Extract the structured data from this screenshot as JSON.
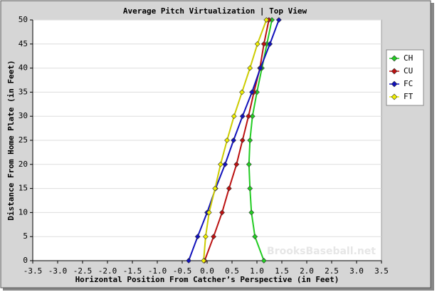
{
  "chart_data": {
    "type": "line",
    "title": "Average Pitch Virtualization | Top View",
    "xlabel": "Horizontal Position From Catcher’s Perspective (in Feet)",
    "ylabel": "Distance From Home Plate (in Feet)",
    "watermark": "BrooksBaseball.net",
    "xlim": [
      -3.5,
      3.5
    ],
    "ylim": [
      0,
      50
    ],
    "xticks": [
      -3.5,
      {
        "value": -3,
        "label": "-3.0"
      },
      -2.5,
      {
        "value": -2,
        "label": "-2.0"
      },
      -1.5,
      {
        "value": -1,
        "label": "-1.0"
      },
      -0.5,
      {
        "value": 0,
        "label": "0.0"
      },
      0.5,
      {
        "value": 1,
        "label": "1.0"
      },
      1.5,
      {
        "value": 2,
        "label": "2.0"
      },
      2.5,
      {
        "value": 3,
        "label": "3.0"
      },
      3.5
    ],
    "yticks": [
      0,
      5,
      10,
      15,
      20,
      25,
      30,
      35,
      40,
      45,
      50
    ],
    "grid": true,
    "legend": "right",
    "series": [
      {
        "name": "CH",
        "color": "#22cc22",
        "x": [
          1.14,
          0.96,
          0.89,
          0.86,
          0.84,
          0.86,
          0.91,
          1.0,
          1.1,
          1.2,
          1.3
        ],
        "values": [
          0,
          5,
          10,
          15,
          20,
          25,
          30,
          35,
          40,
          45,
          50
        ]
      },
      {
        "name": "CU",
        "color": "#bb1111",
        "x": [
          -0.05,
          0.13,
          0.3,
          0.44,
          0.59,
          0.71,
          0.83,
          0.94,
          1.06,
          1.14,
          1.24
        ],
        "values": [
          0,
          5,
          10,
          15,
          20,
          25,
          30,
          35,
          40,
          45,
          50
        ]
      },
      {
        "name": "FC",
        "color": "#1111bb",
        "x": [
          -0.37,
          -0.19,
          0,
          0.17,
          0.36,
          0.53,
          0.71,
          0.9,
          1.07,
          1.26,
          1.44
        ],
        "values": [
          0,
          5,
          10,
          15,
          20,
          25,
          30,
          35,
          40,
          45,
          50
        ]
      },
      {
        "name": "FT",
        "color": "#eeee00",
        "x": [
          -0.07,
          -0.03,
          0.04,
          0.16,
          0.27,
          0.4,
          0.54,
          0.7,
          0.86,
          1.01,
          1.19
        ],
        "values": [
          0,
          5,
          10,
          15,
          20,
          25,
          30,
          35,
          40,
          45,
          50
        ]
      }
    ]
  }
}
